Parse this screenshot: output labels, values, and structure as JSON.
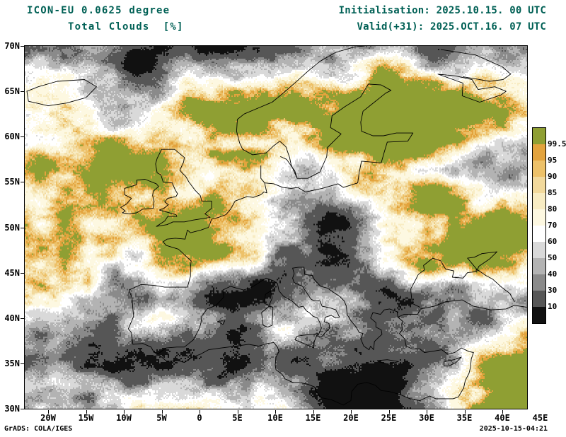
{
  "header": {
    "model_title": "ICON-EU 0.0625 degree",
    "field_title": "Total Clouds  [%]",
    "initialisation": "Initialisation: 2025.10.15. 00 UTC",
    "valid": "Valid(+31): 2025.OCT.16. 07 UTC",
    "text_color": "#006055"
  },
  "axes": {
    "lat_labels": [
      "70N",
      "65N",
      "60N",
      "55N",
      "50N",
      "45N",
      "40N",
      "35N",
      "30N"
    ],
    "lon_labels": [
      "20W",
      "15W",
      "10W",
      "5W",
      "0",
      "5E",
      "10E",
      "15E",
      "20E",
      "25E",
      "30E",
      "35E",
      "40E",
      "45E"
    ]
  },
  "legend": {
    "labels_top_to_bottom": [
      "99.5",
      "95",
      "90",
      "85",
      "80",
      "70",
      "60",
      "50",
      "40",
      "30",
      "10"
    ],
    "colors_top_to_bottom": [
      "#8f9f33",
      "#e3a33d",
      "#edc169",
      "#f2d99c",
      "#f8ecc3",
      "#fdf8e1",
      "#ffffff",
      "#d9d9d9",
      "#b3b3b3",
      "#8a8a8a",
      "#565656",
      "#111111"
    ]
  },
  "footer": {
    "credit": "GrADS: COLA/IGES",
    "created": "2025-10-15-04:21"
  },
  "chart_data": {
    "type": "heatmap",
    "title": "Total Clouds [%]",
    "model": "ICON-EU 0.0625 degree",
    "initialisation": "2025.10.15. 00 UTC",
    "valid": "2025.OCT.16. 07 UTC (+31)",
    "region": "Europe",
    "x_axis": {
      "label": "longitude",
      "range": [
        "20W",
        "45E"
      ],
      "ticks": [
        "20W",
        "15W",
        "10W",
        "5W",
        "0",
        "5E",
        "10E",
        "15E",
        "20E",
        "25E",
        "30E",
        "35E",
        "40E",
        "45E"
      ]
    },
    "y_axis": {
      "label": "latitude",
      "range": [
        "30N",
        "70N"
      ],
      "ticks": [
        "70N",
        "65N",
        "60N",
        "55N",
        "50N",
        "45N",
        "40N",
        "35N",
        "30N"
      ]
    },
    "unit": "percent cloud cover",
    "levels_percent": [
      10,
      30,
      40,
      50,
      60,
      70,
      80,
      85,
      90,
      95,
      99.5
    ],
    "palette_low_to_high": [
      "#111111",
      "#565656",
      "#8a8a8a",
      "#b3b3b3",
      "#d9d9d9",
      "#ffffff",
      "#fdf8e1",
      "#f8ecc3",
      "#f2d99c",
      "#edc169",
      "#e3a33d",
      "#8f9f33"
    ],
    "legend_position": "right",
    "grid": false
  }
}
